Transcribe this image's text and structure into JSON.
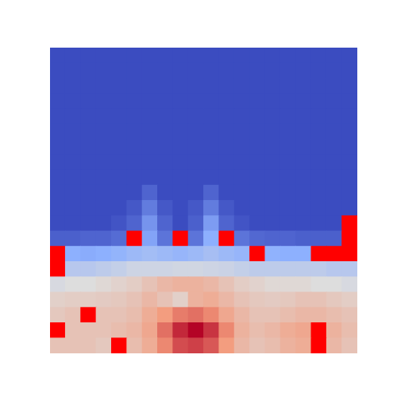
{
  "chart_data": {
    "type": "heatmap",
    "tick_labels": false,
    "zlim": [
      0,
      1
    ],
    "cells": [
      [
        0,
        0,
        0,
        0,
        0,
        0,
        0,
        0,
        0,
        0,
        0,
        0,
        0,
        0,
        0,
        0,
        0,
        0,
        0,
        0
      ],
      [
        0,
        0,
        0,
        0,
        0,
        0,
        0,
        0,
        0,
        0,
        0,
        0,
        0,
        0,
        0,
        0,
        0,
        0,
        0,
        0
      ],
      [
        0,
        0,
        0,
        0,
        0,
        0,
        0,
        0,
        0,
        0,
        0,
        0,
        0,
        0,
        0,
        0,
        0,
        0,
        0,
        0
      ],
      [
        0,
        0,
        0,
        0,
        0,
        0,
        0,
        0,
        0,
        0,
        0,
        0,
        0,
        0,
        0,
        0,
        0,
        0,
        0,
        0
      ],
      [
        0,
        0,
        0,
        0,
        0,
        0,
        0,
        0,
        0,
        0,
        0,
        0,
        0,
        0,
        0,
        0,
        0,
        0,
        0,
        0
      ],
      [
        0,
        0,
        0,
        0,
        0,
        0,
        0,
        0,
        0,
        0,
        0,
        0,
        0,
        0,
        0,
        0,
        0,
        0,
        0,
        0
      ],
      [
        0,
        0,
        0,
        0,
        0,
        0,
        0,
        0,
        0,
        0,
        0,
        0,
        0,
        0,
        0,
        0,
        0,
        0,
        0,
        0
      ],
      [
        0,
        0,
        0,
        0,
        0,
        0,
        0,
        0,
        0,
        0,
        0,
        0,
        0,
        0,
        0,
        0,
        0,
        0,
        0,
        0
      ],
      [
        0,
        0,
        0,
        0,
        0,
        0,
        0,
        0,
        0,
        0,
        0,
        0,
        0,
        0,
        0,
        0,
        0,
        0,
        0,
        0
      ],
      [
        0,
        0,
        0,
        0,
        0,
        0,
        0.06,
        0,
        0,
        0,
        0.06,
        0,
        0,
        0,
        0,
        0,
        0,
        0,
        0,
        0
      ],
      [
        0,
        0,
        0,
        0,
        0,
        0.03,
        0.12,
        0.03,
        0,
        0.03,
        0.12,
        0.03,
        0,
        0,
        0,
        0,
        0,
        0,
        0,
        0
      ],
      [
        0,
        0,
        0,
        0,
        0.02,
        0.06,
        0.18,
        0.06,
        0,
        0.05,
        0.2,
        0.06,
        0.02,
        0,
        0,
        0,
        0,
        0,
        0,
        1.2
      ],
      [
        0.05,
        0.05,
        0.06,
        0.06,
        0.08,
        1.2,
        0.22,
        0.1,
        1.2,
        0.1,
        0.25,
        1.2,
        0.1,
        0.07,
        0.06,
        0.06,
        0.05,
        0.05,
        0.05,
        1.2
      ],
      [
        1.2,
        0.25,
        0.24,
        0.25,
        0.27,
        0.3,
        0.32,
        0.3,
        0.28,
        0.3,
        0.33,
        0.3,
        0.28,
        1.2,
        0.26,
        0.25,
        0.25,
        1.2,
        1.2,
        1.2
      ],
      [
        1.2,
        0.38,
        0.38,
        0.4,
        0.42,
        0.45,
        0.45,
        0.45,
        0.46,
        0.46,
        0.45,
        0.44,
        0.42,
        0.4,
        0.4,
        0.4,
        0.4,
        0.4,
        0.38,
        0.38
      ],
      [
        0.48,
        0.5,
        0.5,
        0.52,
        0.54,
        0.56,
        0.6,
        0.64,
        0.66,
        0.66,
        0.64,
        0.6,
        0.56,
        0.54,
        0.52,
        0.52,
        0.52,
        0.5,
        0.5,
        0.48
      ],
      [
        0.55,
        0.56,
        0.56,
        0.57,
        0.58,
        0.6,
        0.64,
        0.6,
        0.55,
        0.66,
        0.68,
        0.64,
        0.6,
        0.58,
        0.57,
        0.58,
        0.6,
        0.6,
        0.58,
        0.56
      ],
      [
        0.58,
        0.6,
        1.2,
        0.6,
        0.6,
        0.62,
        0.68,
        0.74,
        0.8,
        0.82,
        0.78,
        0.7,
        0.64,
        0.6,
        0.6,
        0.62,
        0.64,
        0.64,
        0.62,
        0.6
      ],
      [
        1.2,
        0.6,
        0.6,
        0.6,
        0.62,
        0.64,
        0.7,
        0.82,
        0.94,
        1.0,
        0.92,
        0.78,
        0.66,
        0.62,
        0.64,
        0.68,
        0.7,
        1.2,
        0.66,
        0.62
      ],
      [
        0.6,
        0.6,
        0.6,
        0.58,
        1.2,
        0.62,
        0.68,
        0.78,
        0.88,
        0.9,
        0.86,
        0.74,
        0.64,
        0.6,
        0.62,
        0.66,
        0.68,
        1.2,
        0.64,
        0.6
      ]
    ]
  }
}
